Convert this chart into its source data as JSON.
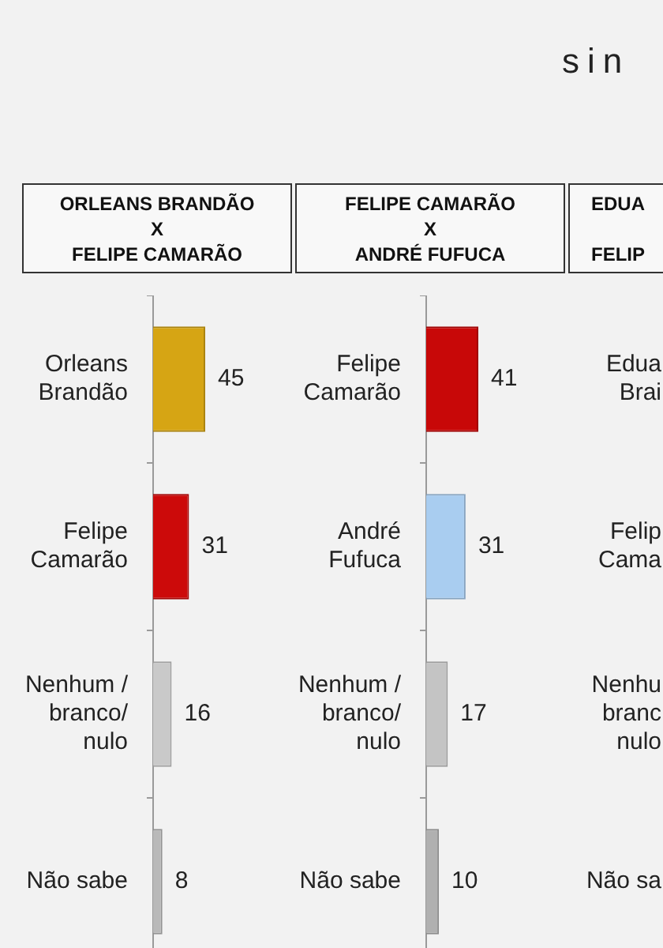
{
  "chart_data": [
    {
      "type": "bar",
      "orientation": "horizontal",
      "title": "ORLEANS BRANDÃO\nX\nFELIPE CAMARÃO",
      "annotations": [
        "sin"
      ],
      "categories": [
        "Orleans\nBrandão",
        "Felipe\nCamarão",
        "Nenhum /\nbranco/\nnulo",
        "Não sabe"
      ],
      "values": [
        45,
        31,
        16,
        8
      ],
      "colors": [
        "#d6a514",
        "#cc0a0a",
        "#c9c9c9",
        "#b9b9b9"
      ],
      "data_labels": true
    },
    {
      "type": "bar",
      "orientation": "horizontal",
      "title": "FELIPE CAMARÃO\nX\nANDRÉ FUFUCA",
      "categories": [
        "Felipe\nCamarão",
        "André\nFufuca",
        "Nenhum /\nbranco/\nnulo",
        "Não sabe"
      ],
      "values": [
        41,
        31,
        17,
        10
      ],
      "colors": [
        "#c80808",
        "#a9cdf0",
        "#c4c4c4",
        "#b0b0b0"
      ],
      "data_labels": true
    },
    {
      "type": "other",
      "title": "EDUA\n\nFELIP",
      "annotations": [
        "Edua\nBrai",
        "Felip\nCama",
        "Nenhu\nbranc\nnulo",
        "Não sa"
      ]
    }
  ]
}
